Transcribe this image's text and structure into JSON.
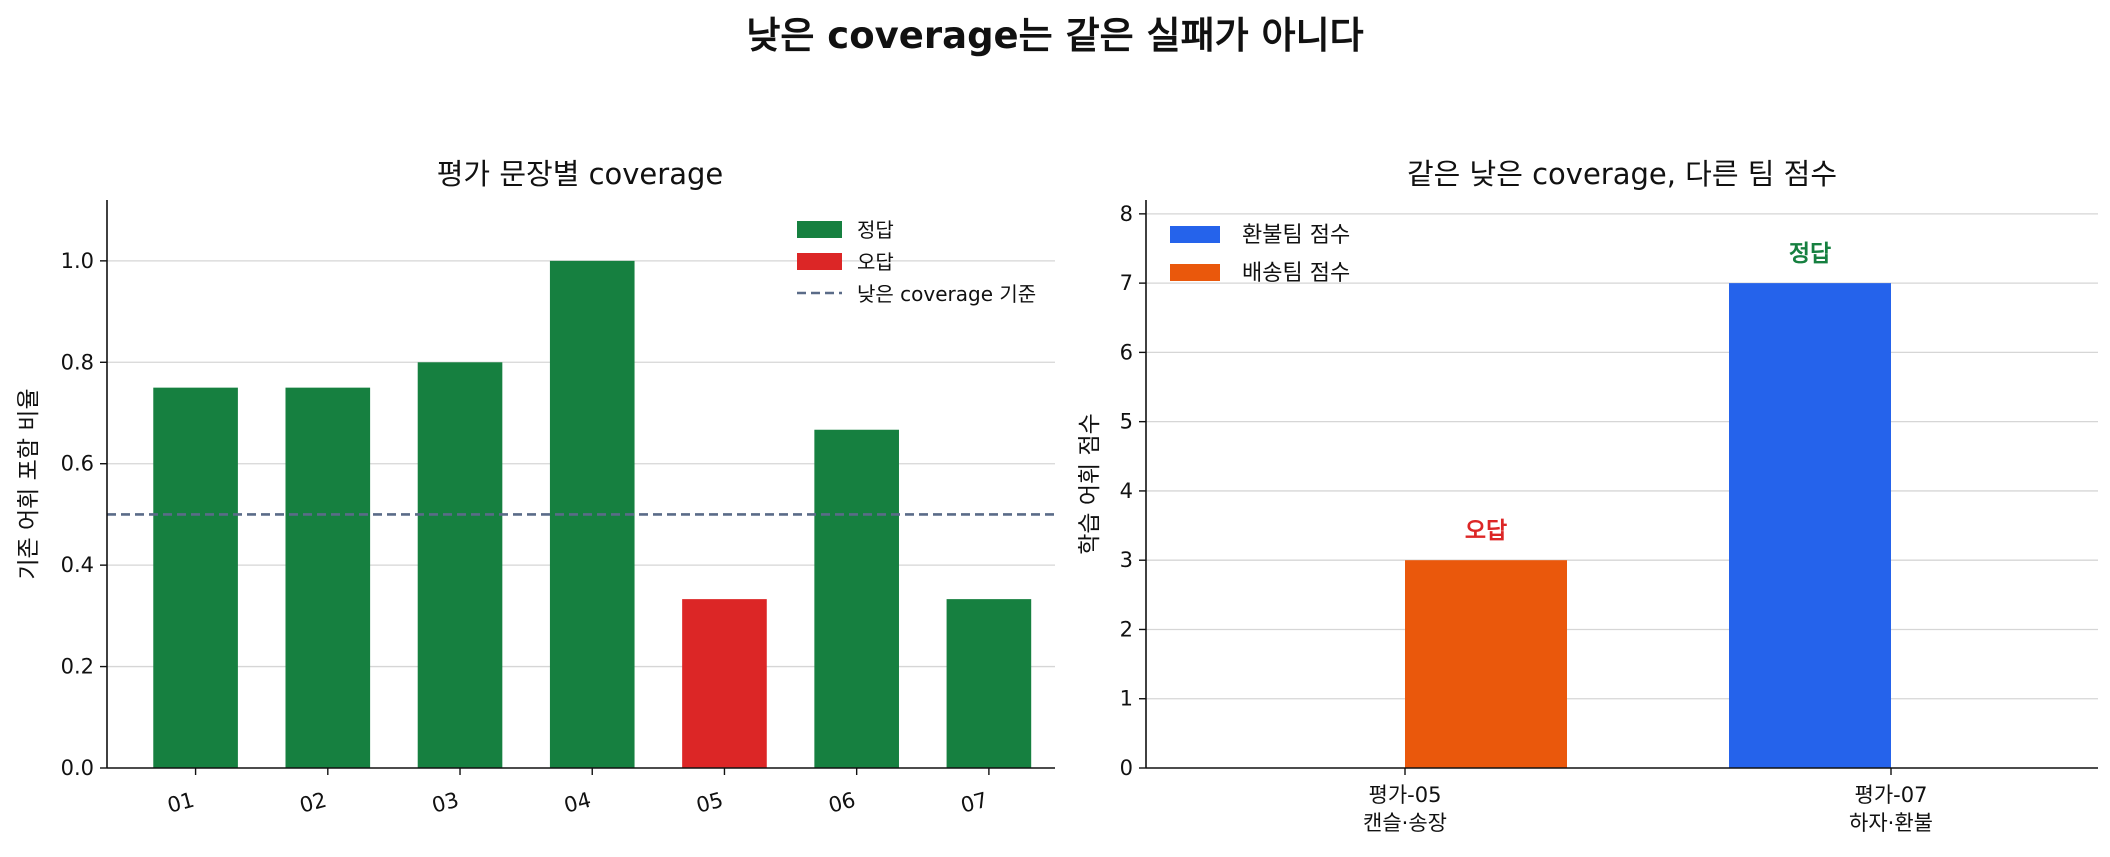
{
  "figure": {
    "title": "낮은 coverage는 같은 실패가 아니다"
  },
  "colors": {
    "correct": "#168040",
    "wrong": "#dc2626",
    "refund": "#2563eb",
    "shipping": "#ea580c",
    "threshold": "#5a6b88",
    "grid": "#d6d6d6"
  },
  "chart_data": [
    {
      "type": "bar",
      "title": "평가 문장별 coverage",
      "xlabel": "",
      "ylabel": "기존 어휘 포함 비율",
      "categories": [
        "01",
        "02",
        "03",
        "04",
        "05",
        "06",
        "07"
      ],
      "values": [
        0.75,
        0.75,
        0.8,
        1.0,
        0.333,
        0.667,
        0.333
      ],
      "outcome": [
        "정답",
        "정답",
        "정답",
        "정답",
        "오답",
        "정답",
        "정답"
      ],
      "ylim": [
        0,
        1.12
      ],
      "yticks": [
        "0.0",
        "0.2",
        "0.4",
        "0.6",
        "0.8",
        "1.0"
      ],
      "threshold": {
        "value": 0.5,
        "label": "낮은 coverage 기준"
      },
      "legend": {
        "placement": "top-right",
        "entries": [
          "정답",
          "오답",
          "낮은 coverage 기준"
        ]
      },
      "grid": "y"
    },
    {
      "type": "bar",
      "title": "같은 낮은 coverage, 다른 팀 점수",
      "xlabel": "",
      "ylabel": "학습 어휘 점수",
      "categories": [
        {
          "line1": "평가-05",
          "line2": "캔슬·송장"
        },
        {
          "line1": "평가-07",
          "line2": "하자·환불"
        }
      ],
      "series": [
        {
          "name": "환불팀 점수",
          "values": [
            0,
            7
          ]
        },
        {
          "name": "배송팀 점수",
          "values": [
            3,
            0
          ]
        }
      ],
      "annotations": [
        {
          "category": 0,
          "text": "오답",
          "kind": "wrong"
        },
        {
          "category": 1,
          "text": "정답",
          "kind": "correct"
        }
      ],
      "ylim": [
        0,
        8.2
      ],
      "yticks": [
        "0",
        "1",
        "2",
        "3",
        "4",
        "5",
        "6",
        "7",
        "8"
      ],
      "legend": {
        "placement": "top-left"
      },
      "grid": "y"
    }
  ]
}
